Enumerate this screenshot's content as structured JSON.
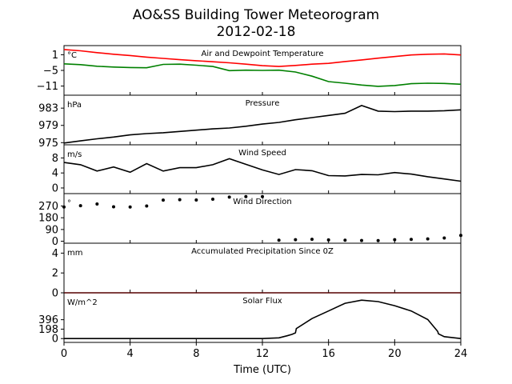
{
  "figure": {
    "title": "AO&SS Building Tower Meteorogram",
    "subtitle": "2012-02-18",
    "xlabel": "Time (UTC)",
    "xticks": [
      0,
      4,
      8,
      12,
      16,
      20,
      24
    ],
    "xlim": [
      0,
      24
    ]
  },
  "chart_data": [
    {
      "type": "line",
      "title": "Air and Dewpoint Temperature",
      "ylabel": "°C",
      "ylim": [
        -14.5,
        4.5
      ],
      "yticks": [
        1,
        -5,
        -11
      ],
      "ytick_labels": [
        "1",
        "−5",
        "−11"
      ],
      "x": [
        0,
        1,
        2,
        3,
        4,
        5,
        6,
        7,
        8,
        9,
        10,
        11,
        12,
        13,
        14,
        15,
        16,
        17,
        18,
        19,
        20,
        21,
        22,
        23,
        24
      ],
      "series": [
        {
          "color": "#ff0000",
          "values": [
            3.0,
            2.5,
            1.8,
            1.2,
            0.7,
            0.1,
            -0.4,
            -0.9,
            -1.3,
            -1.7,
            -2.1,
            -2.6,
            -3.2,
            -3.5,
            -3.1,
            -2.6,
            -2.3,
            -1.6,
            -1.0,
            -0.3,
            0.3,
            0.9,
            1.2,
            1.3,
            0.9
          ]
        },
        {
          "color": "#008000",
          "values": [
            -2.5,
            -2.8,
            -3.4,
            -3.7,
            -3.9,
            -4.0,
            -2.7,
            -2.6,
            -3.0,
            -3.5,
            -5.1,
            -4.9,
            -5.0,
            -4.9,
            -5.6,
            -7.2,
            -9.3,
            -9.9,
            -10.6,
            -11.1,
            -10.8,
            -10.1,
            -9.9,
            -10.0,
            -10.3
          ]
        }
      ]
    },
    {
      "type": "line",
      "title": "Pressure",
      "ylabel": "hPa",
      "ylim": [
        974.5,
        986.0
      ],
      "yticks": [
        983,
        979,
        975
      ],
      "ytick_labels": [
        "983",
        "979",
        "975"
      ],
      "x": [
        0,
        1,
        2,
        3,
        4,
        5,
        6,
        7,
        8,
        9,
        10,
        11,
        12,
        13,
        14,
        15,
        16,
        17,
        18,
        19,
        20,
        21,
        22,
        23,
        24
      ],
      "series": [
        {
          "color": "#000000",
          "values": [
            974.9,
            975.4,
            975.9,
            976.3,
            976.8,
            977.1,
            977.3,
            977.6,
            977.9,
            978.2,
            978.4,
            978.8,
            979.3,
            979.7,
            980.3,
            980.8,
            981.3,
            981.8,
            983.6,
            982.3,
            982.2,
            982.3,
            982.3,
            982.4,
            982.6
          ]
        }
      ]
    },
    {
      "type": "line",
      "title": "Wind Speed",
      "ylabel": "m/s",
      "ylim": [
        -1.5,
        11.5
      ],
      "yticks": [
        8,
        4,
        0
      ],
      "ytick_labels": [
        "8",
        "4",
        "0"
      ],
      "x": [
        0,
        1,
        2,
        3,
        4,
        5,
        6,
        7,
        8,
        9,
        10,
        11,
        12,
        13,
        14,
        15,
        16,
        17,
        18,
        19,
        20,
        21,
        22,
        23,
        24
      ],
      "series": [
        {
          "color": "#000000",
          "values": [
            6.8,
            6.2,
            4.5,
            5.6,
            4.2,
            6.5,
            4.5,
            5.4,
            5.4,
            6.2,
            7.8,
            6.3,
            4.8,
            3.6,
            4.9,
            4.6,
            3.3,
            3.2,
            3.6,
            3.5,
            4.1,
            3.7,
            3.0,
            2.4,
            1.8
          ]
        }
      ]
    },
    {
      "type": "scatter",
      "title": "Wind Direction",
      "ylabel": "°",
      "ylim": [
        -15,
        365
      ],
      "yticks": [
        270,
        180,
        90,
        0
      ],
      "ytick_labels": [
        "270",
        "180",
        "90",
        "0"
      ],
      "x": [
        0,
        1,
        2,
        3,
        4,
        5,
        6,
        7,
        8,
        9,
        10,
        11,
        12,
        13,
        14,
        15,
        16,
        17,
        18,
        19,
        20,
        21,
        22,
        23,
        24
      ],
      "series": [
        {
          "color": "#000000",
          "values": [
            262,
            272,
            285,
            264,
            262,
            270,
            315,
            318,
            316,
            322,
            338,
            342,
            342,
            8,
            12,
            15,
            10,
            8,
            6,
            5,
            12,
            14,
            18,
            25,
            45
          ]
        }
      ]
    },
    {
      "type": "line",
      "title": "Accumulated Precipitation Since 0Z",
      "ylabel": "mm",
      "ylim": [
        0,
        5
      ],
      "yticks": [
        4,
        2,
        0
      ],
      "ytick_labels": [
        "4",
        "2",
        "0"
      ],
      "x": [
        0,
        24
      ],
      "series": [
        {
          "color": "#ff0000",
          "values": [
            0,
            0
          ]
        }
      ]
    },
    {
      "type": "line",
      "title": "Solar Flux",
      "ylabel": "W/m^2",
      "ylim": [
        -80,
        960
      ],
      "yticks": [
        396,
        198,
        0
      ],
      "ytick_labels": [
        "396",
        "198",
        "0"
      ],
      "x": [
        0,
        12,
        13.0,
        13.5,
        13.8,
        14.0,
        14.05,
        15,
        16,
        17,
        18,
        19,
        20,
        21,
        22,
        22.6,
        22.65,
        23,
        24
      ],
      "series": [
        {
          "color": "#000000",
          "values": [
            0,
            0,
            15,
            60,
            90,
            120,
            210,
            420,
            580,
            740,
            805,
            775,
            690,
            580,
            400,
            150,
            100,
            40,
            0
          ]
        }
      ]
    }
  ]
}
